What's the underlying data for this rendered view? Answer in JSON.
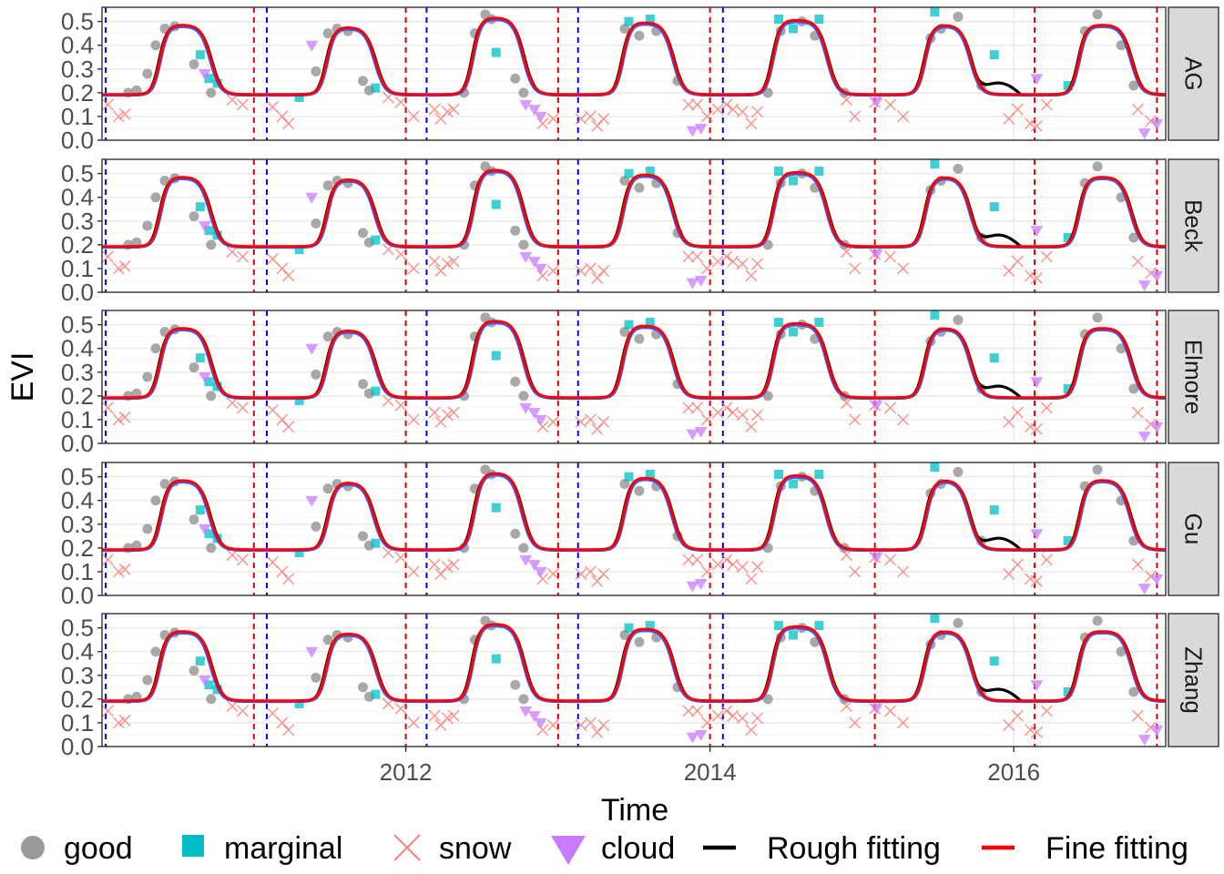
{
  "chart_data": {
    "type": "line",
    "xlabel": "Time",
    "ylabel": "EVI",
    "x_range": [
      "2010-01-01",
      "2016-12-31"
    ],
    "x_ticks": [
      {
        "date": "2012-01-01",
        "label": "2012"
      },
      {
        "date": "2014-01-01",
        "label": "2014"
      },
      {
        "date": "2016-01-01",
        "label": "2016"
      }
    ],
    "ylim": [
      0,
      0.56
    ],
    "y_ticks": [
      "0.0",
      "0.1",
      "0.2",
      "0.3",
      "0.4",
      "0.5"
    ],
    "y_tick_values": [
      0,
      0.1,
      0.2,
      0.3,
      0.4,
      0.5
    ],
    "grid": true,
    "legend_position": "bottom",
    "colors": {
      "good": "#999999",
      "marginal": "#00BFC4",
      "snow": "#F8766D",
      "cloud": "#C77CFF",
      "rough": "#000000",
      "fine": "#FF0000",
      "fine_alt": "#3B5BFF",
      "season_start": "#0000EE",
      "season_end": "#DD0000"
    },
    "panels": [
      "AG",
      "Beck",
      "Elmore",
      "Gu",
      "Zhang"
    ],
    "legend": [
      {
        "name": "good",
        "shape": "circle"
      },
      {
        "name": "marginal",
        "shape": "square"
      },
      {
        "name": "snow",
        "shape": "cross"
      },
      {
        "name": "cloud",
        "shape": "triangle-down"
      },
      {
        "name": "Rough fitting",
        "shape": "line"
      },
      {
        "name": "Fine fitting",
        "shape": "line"
      }
    ],
    "season_starts": [
      "2010-01-10",
      "2011-02-01",
      "2012-02-20",
      "2013-02-18",
      "2014-02-01"
    ],
    "season_ends": [
      "2011-01-01",
      "2012-01-01",
      "2013-01-01",
      "2014-01-01",
      "2015-02-01",
      "2016-02-20",
      "2016-12-10"
    ],
    "baseline": 0.19,
    "seasons": [
      {
        "up": "2010-05-20",
        "down": "2010-09-20",
        "peak": 0.48
      },
      {
        "up": "2011-06-25",
        "down": "2011-10-20",
        "peak": 0.47
      },
      {
        "up": "2012-06-10",
        "down": "2012-10-10",
        "peak": 0.51
      },
      {
        "up": "2013-06-05",
        "down": "2013-10-05",
        "peak": 0.49
      },
      {
        "up": "2014-06-01",
        "down": "2014-10-10",
        "peak": 0.5
      },
      {
        "up": "2015-06-01",
        "down": "2015-09-20",
        "peak": 0.48
      },
      {
        "up": "2016-06-05",
        "down": "2016-10-10",
        "peak": 0.48
      }
    ],
    "points": {
      "good": [
        [
          "2010-03-05",
          0.2
        ],
        [
          "2010-03-25",
          0.21
        ],
        [
          "2010-04-20",
          0.28
        ],
        [
          "2010-05-10",
          0.4
        ],
        [
          "2010-06-01",
          0.47
        ],
        [
          "2010-06-25",
          0.48
        ],
        [
          "2010-08-10",
          0.32
        ],
        [
          "2010-09-20",
          0.2
        ],
        [
          "2011-05-30",
          0.29
        ],
        [
          "2011-06-28",
          0.45
        ],
        [
          "2011-07-20",
          0.47
        ],
        [
          "2011-08-15",
          0.46
        ],
        [
          "2011-09-20",
          0.25
        ],
        [
          "2011-10-05",
          0.21
        ],
        [
          "2012-05-20",
          0.2
        ],
        [
          "2012-06-15",
          0.45
        ],
        [
          "2012-07-10",
          0.53
        ],
        [
          "2012-07-25",
          0.51
        ],
        [
          "2012-09-20",
          0.26
        ],
        [
          "2012-10-10",
          0.2
        ],
        [
          "2013-06-10",
          0.47
        ],
        [
          "2013-07-15",
          0.44
        ],
        [
          "2013-08-25",
          0.46
        ],
        [
          "2013-10-15",
          0.25
        ],
        [
          "2014-05-20",
          0.2
        ],
        [
          "2014-06-20",
          0.46
        ],
        [
          "2014-08-10",
          0.5
        ],
        [
          "2014-09-10",
          0.44
        ],
        [
          "2014-11-20",
          0.2
        ],
        [
          "2015-06-15",
          0.43
        ],
        [
          "2015-07-10",
          0.47
        ],
        [
          "2015-08-20",
          0.52
        ],
        [
          "2015-10-15",
          0.23
        ],
        [
          "2016-06-20",
          0.46
        ],
        [
          "2016-07-20",
          0.53
        ],
        [
          "2016-09-15",
          0.4
        ],
        [
          "2016-10-15",
          0.23
        ]
      ],
      "marginal": [
        [
          "2010-08-25",
          0.36
        ],
        [
          "2010-09-15",
          0.26
        ],
        [
          "2010-10-05",
          0.24
        ],
        [
          "2011-04-20",
          0.18
        ],
        [
          "2011-10-20",
          0.22
        ],
        [
          "2012-08-05",
          0.37
        ],
        [
          "2013-06-20",
          0.5
        ],
        [
          "2013-08-10",
          0.51
        ],
        [
          "2014-06-15",
          0.51
        ],
        [
          "2014-07-20",
          0.47
        ],
        [
          "2014-09-20",
          0.51
        ],
        [
          "2015-06-25",
          0.54
        ],
        [
          "2015-11-15",
          0.36
        ],
        [
          "2016-05-10",
          0.23
        ]
      ],
      "snow": [
        [
          "2010-01-15",
          0.15
        ],
        [
          "2010-02-10",
          0.1
        ],
        [
          "2010-02-25",
          0.11
        ],
        [
          "2010-11-10",
          0.17
        ],
        [
          "2010-12-05",
          0.15
        ],
        [
          "2011-02-15",
          0.14
        ],
        [
          "2011-03-10",
          0.1
        ],
        [
          "2011-03-25",
          0.07
        ],
        [
          "2011-11-20",
          0.18
        ],
        [
          "2011-12-20",
          0.16
        ],
        [
          "2012-01-20",
          0.1
        ],
        [
          "2012-03-10",
          0.13
        ],
        [
          "2012-03-25",
          0.09
        ],
        [
          "2012-04-10",
          0.12
        ],
        [
          "2012-04-25",
          0.13
        ],
        [
          "2012-11-25",
          0.07
        ],
        [
          "2012-12-20",
          0.09
        ],
        [
          "2013-02-25",
          0.09
        ],
        [
          "2013-03-20",
          0.1
        ],
        [
          "2013-04-05",
          0.06
        ],
        [
          "2013-04-20",
          0.09
        ],
        [
          "2013-11-10",
          0.15
        ],
        [
          "2013-12-01",
          0.15
        ],
        [
          "2013-12-25",
          0.1
        ],
        [
          "2014-01-20",
          0.13
        ],
        [
          "2014-02-10",
          0.15
        ],
        [
          "2014-02-25",
          0.13
        ],
        [
          "2014-03-20",
          0.12
        ],
        [
          "2014-04-10",
          0.07
        ],
        [
          "2014-04-25",
          0.12
        ],
        [
          "2014-11-25",
          0.17
        ],
        [
          "2014-12-15",
          0.1
        ],
        [
          "2015-02-01",
          0.16
        ],
        [
          "2015-03-10",
          0.15
        ],
        [
          "2015-04-10",
          0.1
        ],
        [
          "2015-12-20",
          0.09
        ],
        [
          "2016-01-10",
          0.13
        ],
        [
          "2016-02-10",
          0.07
        ],
        [
          "2016-02-25",
          0.06
        ],
        [
          "2016-03-20",
          0.15
        ],
        [
          "2016-10-25",
          0.13
        ],
        [
          "2016-11-25",
          0.08
        ]
      ],
      "cloud": [
        [
          "2010-09-05",
          0.28
        ],
        [
          "2011-05-20",
          0.4
        ],
        [
          "2012-10-15",
          0.15
        ],
        [
          "2012-11-05",
          0.13
        ],
        [
          "2012-11-20",
          0.1
        ],
        [
          "2013-11-20",
          0.04
        ],
        [
          "2013-12-10",
          0.05
        ],
        [
          "2015-02-05",
          0.16
        ],
        [
          "2016-02-25",
          0.26
        ],
        [
          "2016-11-10",
          0.03
        ],
        [
          "2016-12-10",
          0.07
        ]
      ]
    }
  }
}
